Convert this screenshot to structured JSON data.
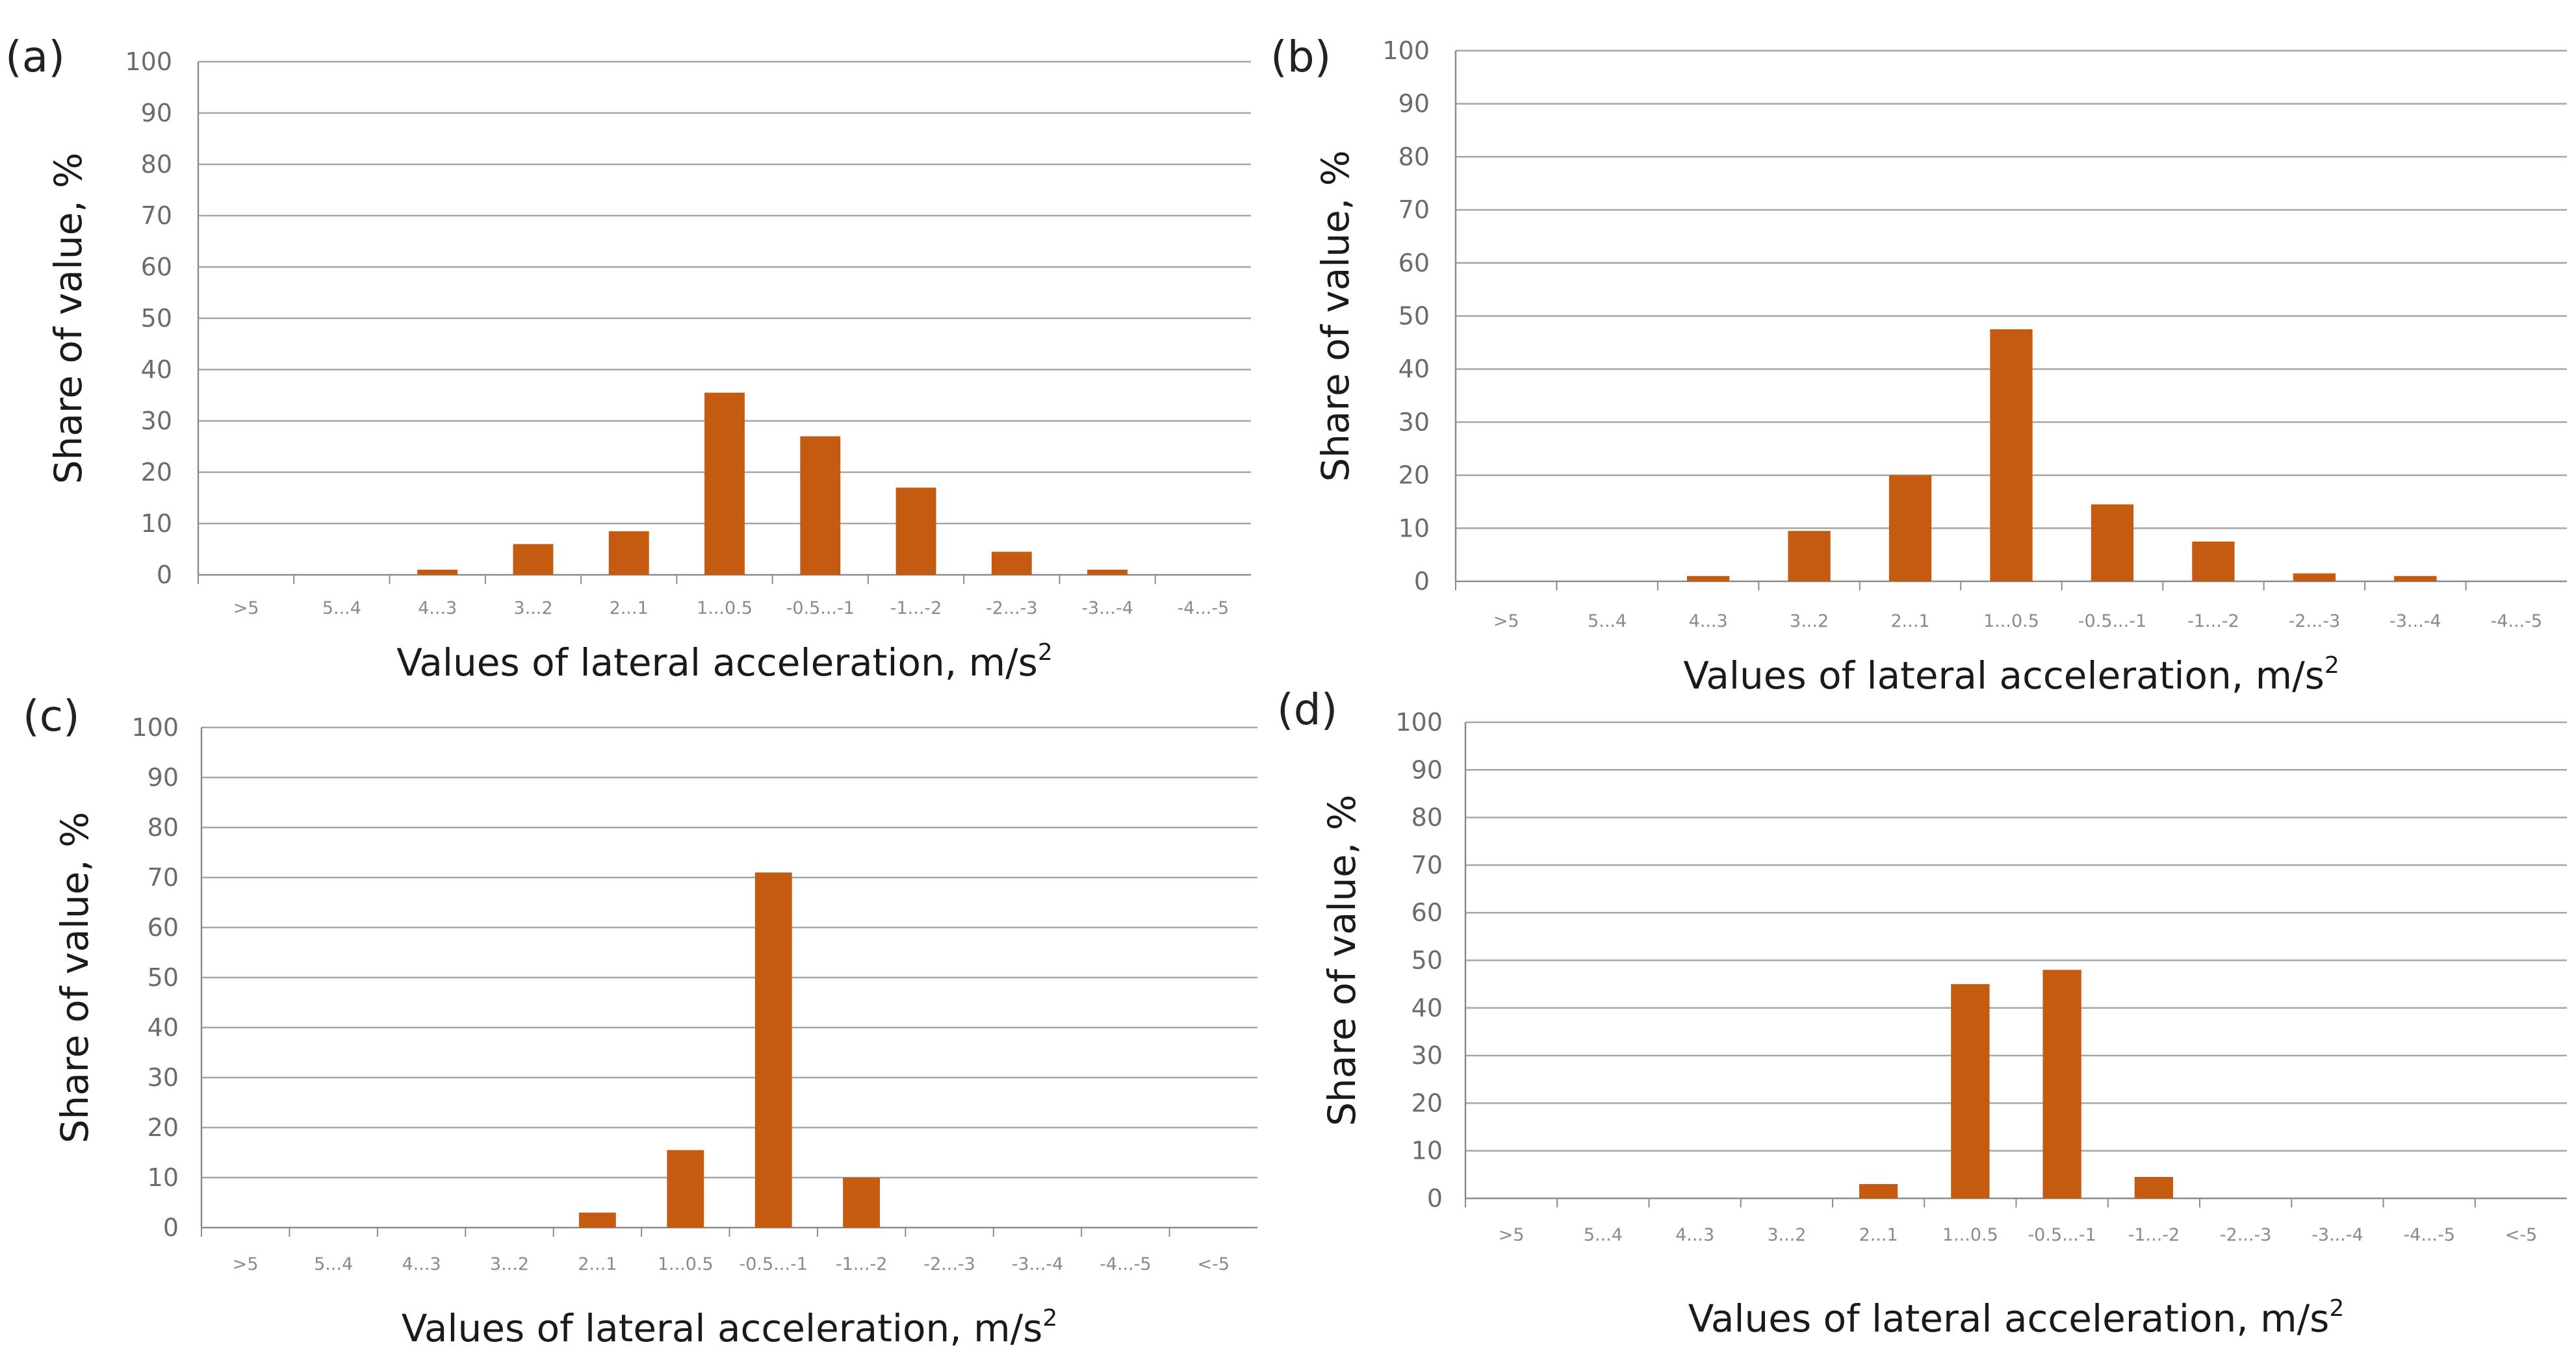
{
  "figure": {
    "bar_color": "#C55A11",
    "grid_color": "#A6A6A6",
    "axis_color": "#8C8C8C"
  },
  "chart_data": [
    {
      "type": "bar",
      "panel": "(a)",
      "categories": [
        ">5",
        "5...4",
        "4...3",
        "3...2",
        "2...1",
        "1...0.5",
        "-0.5...-1",
        "-1...-2",
        "-2...-3",
        "-3...-4",
        "-4...-5"
      ],
      "values": [
        0,
        0,
        1,
        6,
        8.5,
        35.5,
        27,
        17,
        4.5,
        1,
        0
      ],
      "ylabel": "Share of value, %",
      "xlabel": "Values of lateral acceleration, m/s",
      "xlabel_sup": "2",
      "ylim": [
        0,
        100
      ],
      "yticks": [
        "0",
        "10",
        "20",
        "30",
        "40",
        "50",
        "60",
        "70",
        "80",
        "90",
        "100"
      ]
    },
    {
      "type": "bar",
      "panel": "(b)",
      "categories": [
        ">5",
        "5...4",
        "4...3",
        "3...2",
        "2...1",
        "1...0.5",
        "-0.5...-1",
        "-1...-2",
        "-2...-3",
        "-3...-4",
        "-4...-5"
      ],
      "values": [
        0,
        0,
        1,
        9.5,
        20,
        47.5,
        14.5,
        7.5,
        1.5,
        1,
        0
      ],
      "ylabel": "Share of value, %",
      "xlabel": "Values of lateral acceleration, m/s",
      "xlabel_sup": "2",
      "ylim": [
        0,
        100
      ],
      "yticks": [
        "0",
        "10",
        "20",
        "30",
        "40",
        "50",
        "60",
        "70",
        "80",
        "90",
        "100"
      ]
    },
    {
      "type": "bar",
      "panel": "(c)",
      "categories": [
        ">5",
        "5...4",
        "4...3",
        "3...2",
        "2...1",
        "1...0.5",
        "-0.5...-1",
        "-1...-2",
        "-2...-3",
        "-3...-4",
        "-4...-5",
        "<-5"
      ],
      "values": [
        0,
        0,
        0,
        0,
        3,
        15.5,
        71,
        10,
        0,
        0,
        0,
        0
      ],
      "ylabel": "Share of value, %",
      "xlabel": "Values of lateral acceleration, m/s",
      "xlabel_sup": "2",
      "ylim": [
        0,
        100
      ],
      "yticks": [
        "0",
        "10",
        "20",
        "30",
        "40",
        "50",
        "60",
        "70",
        "80",
        "90",
        "100"
      ]
    },
    {
      "type": "bar",
      "panel": "(d)",
      "categories": [
        ">5",
        "5...4",
        "4...3",
        "3...2",
        "2...1",
        "1...0.5",
        "-0.5...-1",
        "-1...-2",
        "-2...-3",
        "-3...-4",
        "-4...-5",
        "<-5"
      ],
      "values": [
        0,
        0,
        0,
        0,
        3,
        45,
        48,
        4.5,
        0,
        0,
        0,
        0
      ],
      "ylabel": "Share of value, %",
      "xlabel": "Values of lateral acceleration, m/s",
      "xlabel_sup": "2",
      "ylim": [
        0,
        100
      ],
      "yticks": [
        "0",
        "10",
        "20",
        "30",
        "40",
        "50",
        "60",
        "70",
        "80",
        "90",
        "100"
      ]
    }
  ]
}
